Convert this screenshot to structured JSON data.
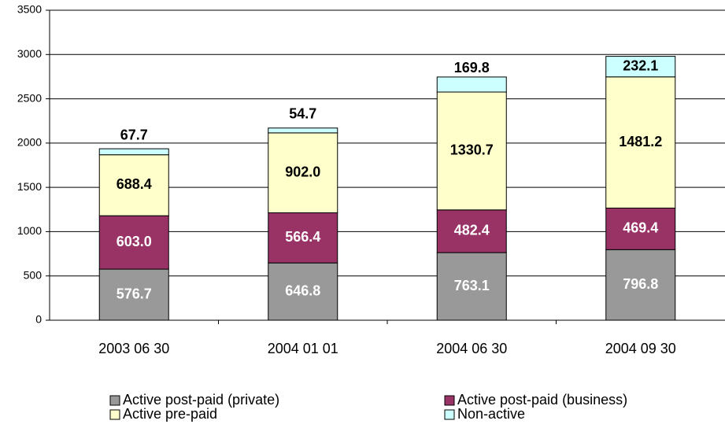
{
  "chart_data": {
    "type": "stacked_bar",
    "categories": [
      "2003 06 30",
      "2004 01 01",
      "2004 06 30",
      "2004 09 30"
    ],
    "series": [
      {
        "name": "Active post-paid (private)",
        "color": "#999999",
        "values": [
          576.7,
          646.8,
          763.1,
          796.8
        ],
        "value_labels": [
          "576.7",
          "646.8",
          "763.1",
          "796.8"
        ]
      },
      {
        "name": "Active post-paid (business)",
        "color": "#993366",
        "values": [
          603,
          566.4,
          482.4,
          469.4
        ],
        "value_labels": [
          "603.0",
          "566.4",
          "482.4",
          "469.4"
        ]
      },
      {
        "name": "Active pre-paid",
        "color": "#ffffcc",
        "values": [
          688.4,
          902,
          1330.7,
          1481.2
        ],
        "value_labels": [
          "688.4",
          "902.0",
          "1330.7",
          "1481.2"
        ]
      },
      {
        "name": "Non-active",
        "color": "#ccffff",
        "values": [
          67.7,
          54.7,
          169.8,
          232.1
        ],
        "value_labels": [
          "67.7",
          "54.7",
          "169.8",
          "232.1"
        ]
      }
    ],
    "ylim": [
      0,
      3500
    ],
    "yticks": [
      0,
      500,
      1000,
      1500,
      2000,
      2500,
      3000,
      3500
    ],
    "grid": true
  }
}
